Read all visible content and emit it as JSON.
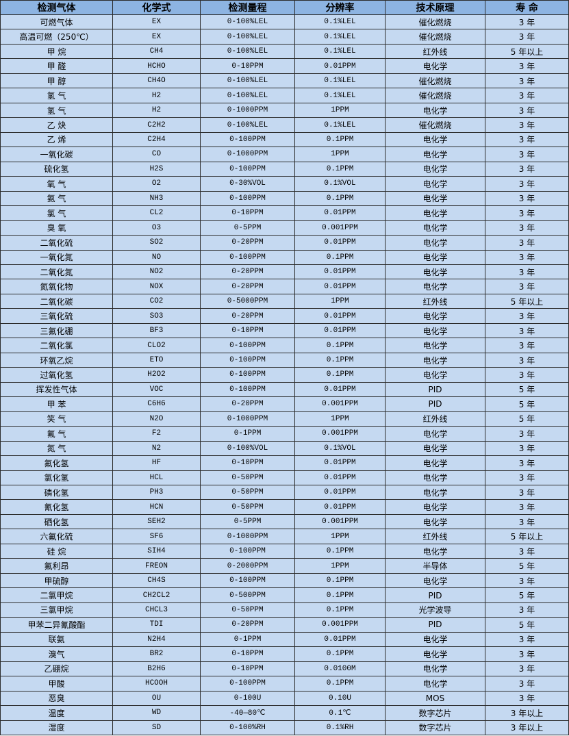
{
  "headers": [
    "检测气体",
    "化学式",
    "检测量程",
    "分辨率",
    "技术原理",
    "寿 命"
  ],
  "rows": [
    [
      "可燃气体",
      "EX",
      "0-100%LEL",
      "0.1%LEL",
      "催化燃烧",
      "3 年"
    ],
    [
      "高温可燃（250℃）",
      "EX",
      "0-100%LEL",
      "0.1%LEL",
      "催化燃烧",
      "3 年"
    ],
    [
      "甲 烷",
      "CH4",
      "0-100%LEL",
      "0.1%LEL",
      "红外线",
      "5 年以上"
    ],
    [
      "甲 醛",
      "HCHO",
      "0-10PPM",
      "0.01PPM",
      "电化学",
      "3 年"
    ],
    [
      "甲 醇",
      "CH4O",
      "0-100%LEL",
      "0.1%LEL",
      "催化燃烧",
      "3 年"
    ],
    [
      "氢 气",
      "H2",
      "0-100%LEL",
      "0.1%LEL",
      "催化燃烧",
      "3 年"
    ],
    [
      "氢 气",
      "H2",
      "0-1000PPM",
      "1PPM",
      "电化学",
      "3 年"
    ],
    [
      "乙 炔",
      "C2H2",
      "0-100%LEL",
      "0.1%LEL",
      "催化燃烧",
      "3 年"
    ],
    [
      "乙 烯",
      "C2H4",
      "0-100PPM",
      "0.1PPM",
      "电化学",
      "3 年"
    ],
    [
      "一氧化碳",
      "CO",
      "0-1000PPM",
      "1PPM",
      "电化学",
      "3 年"
    ],
    [
      "硫化氢",
      "H2S",
      "0-100PPM",
      "0.1PPM",
      "电化学",
      "3 年"
    ],
    [
      "氧 气",
      "O2",
      "0-30%VOL",
      "0.1%VOL",
      "电化学",
      "3 年"
    ],
    [
      "氨 气",
      "NH3",
      "0-100PPM",
      "0.1PPM",
      "电化学",
      "3 年"
    ],
    [
      "氯 气",
      "CL2",
      "0-10PPM",
      "0.01PPM",
      "电化学",
      "3 年"
    ],
    [
      "臭 氧",
      "O3",
      "0-5PPM",
      "0.001PPM",
      "电化学",
      "3 年"
    ],
    [
      "二氧化硫",
      "SO2",
      "0-20PPM",
      "0.01PPM",
      "电化学",
      "3 年"
    ],
    [
      "一氧化氮",
      "NO",
      "0-100PPM",
      "0.1PPM",
      "电化学",
      "3 年"
    ],
    [
      "二氧化氮",
      "NO2",
      "0-20PPM",
      "0.01PPM",
      "电化学",
      "3 年"
    ],
    [
      "氮氧化物",
      "NOX",
      "0-20PPM",
      "0.01PPM",
      "电化学",
      "3 年"
    ],
    [
      "二氧化碳",
      "CO2",
      "0-5000PPM",
      "1PPM",
      "红外线",
      "5 年以上"
    ],
    [
      "三氧化硫",
      "SO3",
      "0-20PPM",
      "0.01PPM",
      "电化学",
      "3 年"
    ],
    [
      "三氟化硼",
      "BF3",
      "0-10PPM",
      "0.01PPM",
      "电化学",
      "3 年"
    ],
    [
      "二氧化氯",
      "CLO2",
      "0-100PPM",
      "0.1PPM",
      "电化学",
      "3 年"
    ],
    [
      "环氧乙烷",
      "ETO",
      "0-100PPM",
      "0.1PPM",
      "电化学",
      "3 年"
    ],
    [
      "过氧化氢",
      "H2O2",
      "0-100PPM",
      "0.1PPM",
      "电化学",
      "3 年"
    ],
    [
      "挥发性气体",
      "VOC",
      "0-100PPM",
      "0.01PPM",
      "PID",
      "5 年"
    ],
    [
      "甲 苯",
      "C6H6",
      "0-20PPM",
      "0.001PPM",
      "PID",
      "5 年"
    ],
    [
      "笑 气",
      "N2O",
      "0-1000PPM",
      "1PPM",
      "红外线",
      "5 年"
    ],
    [
      "氟 气",
      "F2",
      "0-1PPM",
      "0.001PPM",
      "电化学",
      "3 年"
    ],
    [
      "氮 气",
      "N2",
      "0-100%VOL",
      "0.1%VOL",
      "电化学",
      "3 年"
    ],
    [
      "氟化氢",
      "HF",
      "0-10PPM",
      "0.01PPM",
      "电化学",
      "3 年"
    ],
    [
      "氯化氢",
      "HCL",
      "0-50PPM",
      "0.01PPM",
      "电化学",
      "3 年"
    ],
    [
      "磷化氢",
      "PH3",
      "0-50PPM",
      "0.01PPM",
      "电化学",
      "3 年"
    ],
    [
      "氰化氢",
      "HCN",
      "0-50PPM",
      "0.01PPM",
      "电化学",
      "3 年"
    ],
    [
      "硒化氢",
      "SEH2",
      "0-5PPM",
      "0.001PPM",
      "电化学",
      "3 年"
    ],
    [
      "六氟化硫",
      "SF6",
      "0-1000PPM",
      "1PPM",
      "红外线",
      "5 年以上"
    ],
    [
      "硅 烷",
      "SIH4",
      "0-100PPM",
      "0.1PPM",
      "电化学",
      "3 年"
    ],
    [
      "氟利昂",
      "FREON",
      "0-2000PPM",
      "1PPM",
      "半导体",
      "5 年"
    ],
    [
      "甲硫醇",
      "CH4S",
      "0-100PPM",
      "0.1PPM",
      "电化学",
      "3 年"
    ],
    [
      "二氯甲烷",
      "CH2CL2",
      "0-500PPM",
      "0.1PPM",
      "PID",
      "5 年"
    ],
    [
      "三氯甲烷",
      "CHCL3",
      "0-50PPM",
      "0.1PPM",
      "光学波导",
      "3 年"
    ],
    [
      "甲苯二异氰酸酯",
      "TDI",
      "0-20PPM",
      "0.001PPM",
      "PID",
      "5 年"
    ],
    [
      "联氨",
      "N2H4",
      "0-1PPM",
      "0.01PPM",
      "电化学",
      "3 年"
    ],
    [
      "溴气",
      "BR2",
      "0-10PPM",
      "0.1PPM",
      "电化学",
      "3 年"
    ],
    [
      "乙硼烷",
      "B2H6",
      "0-10PPM",
      "0.0100M",
      "电化学",
      "3 年"
    ],
    [
      "甲酸",
      "HCOOH",
      "0-100PPM",
      "0.1PPM",
      "电化学",
      "3 年"
    ],
    [
      "恶臭",
      "OU",
      "0-100U",
      "0.10U",
      "MOS",
      "3 年"
    ],
    [
      "温度",
      "WD",
      "-40—80℃",
      "0.1℃",
      "数字芯片",
      "3 年以上"
    ],
    [
      "湿度",
      "SD",
      "0-100%RH",
      "0.1%RH",
      "数字芯片",
      "3 年以上"
    ]
  ],
  "colors": {
    "header_bg": "#8db4e2",
    "cell_bg": "#c5d9f1",
    "border": "#2b2b2b"
  }
}
